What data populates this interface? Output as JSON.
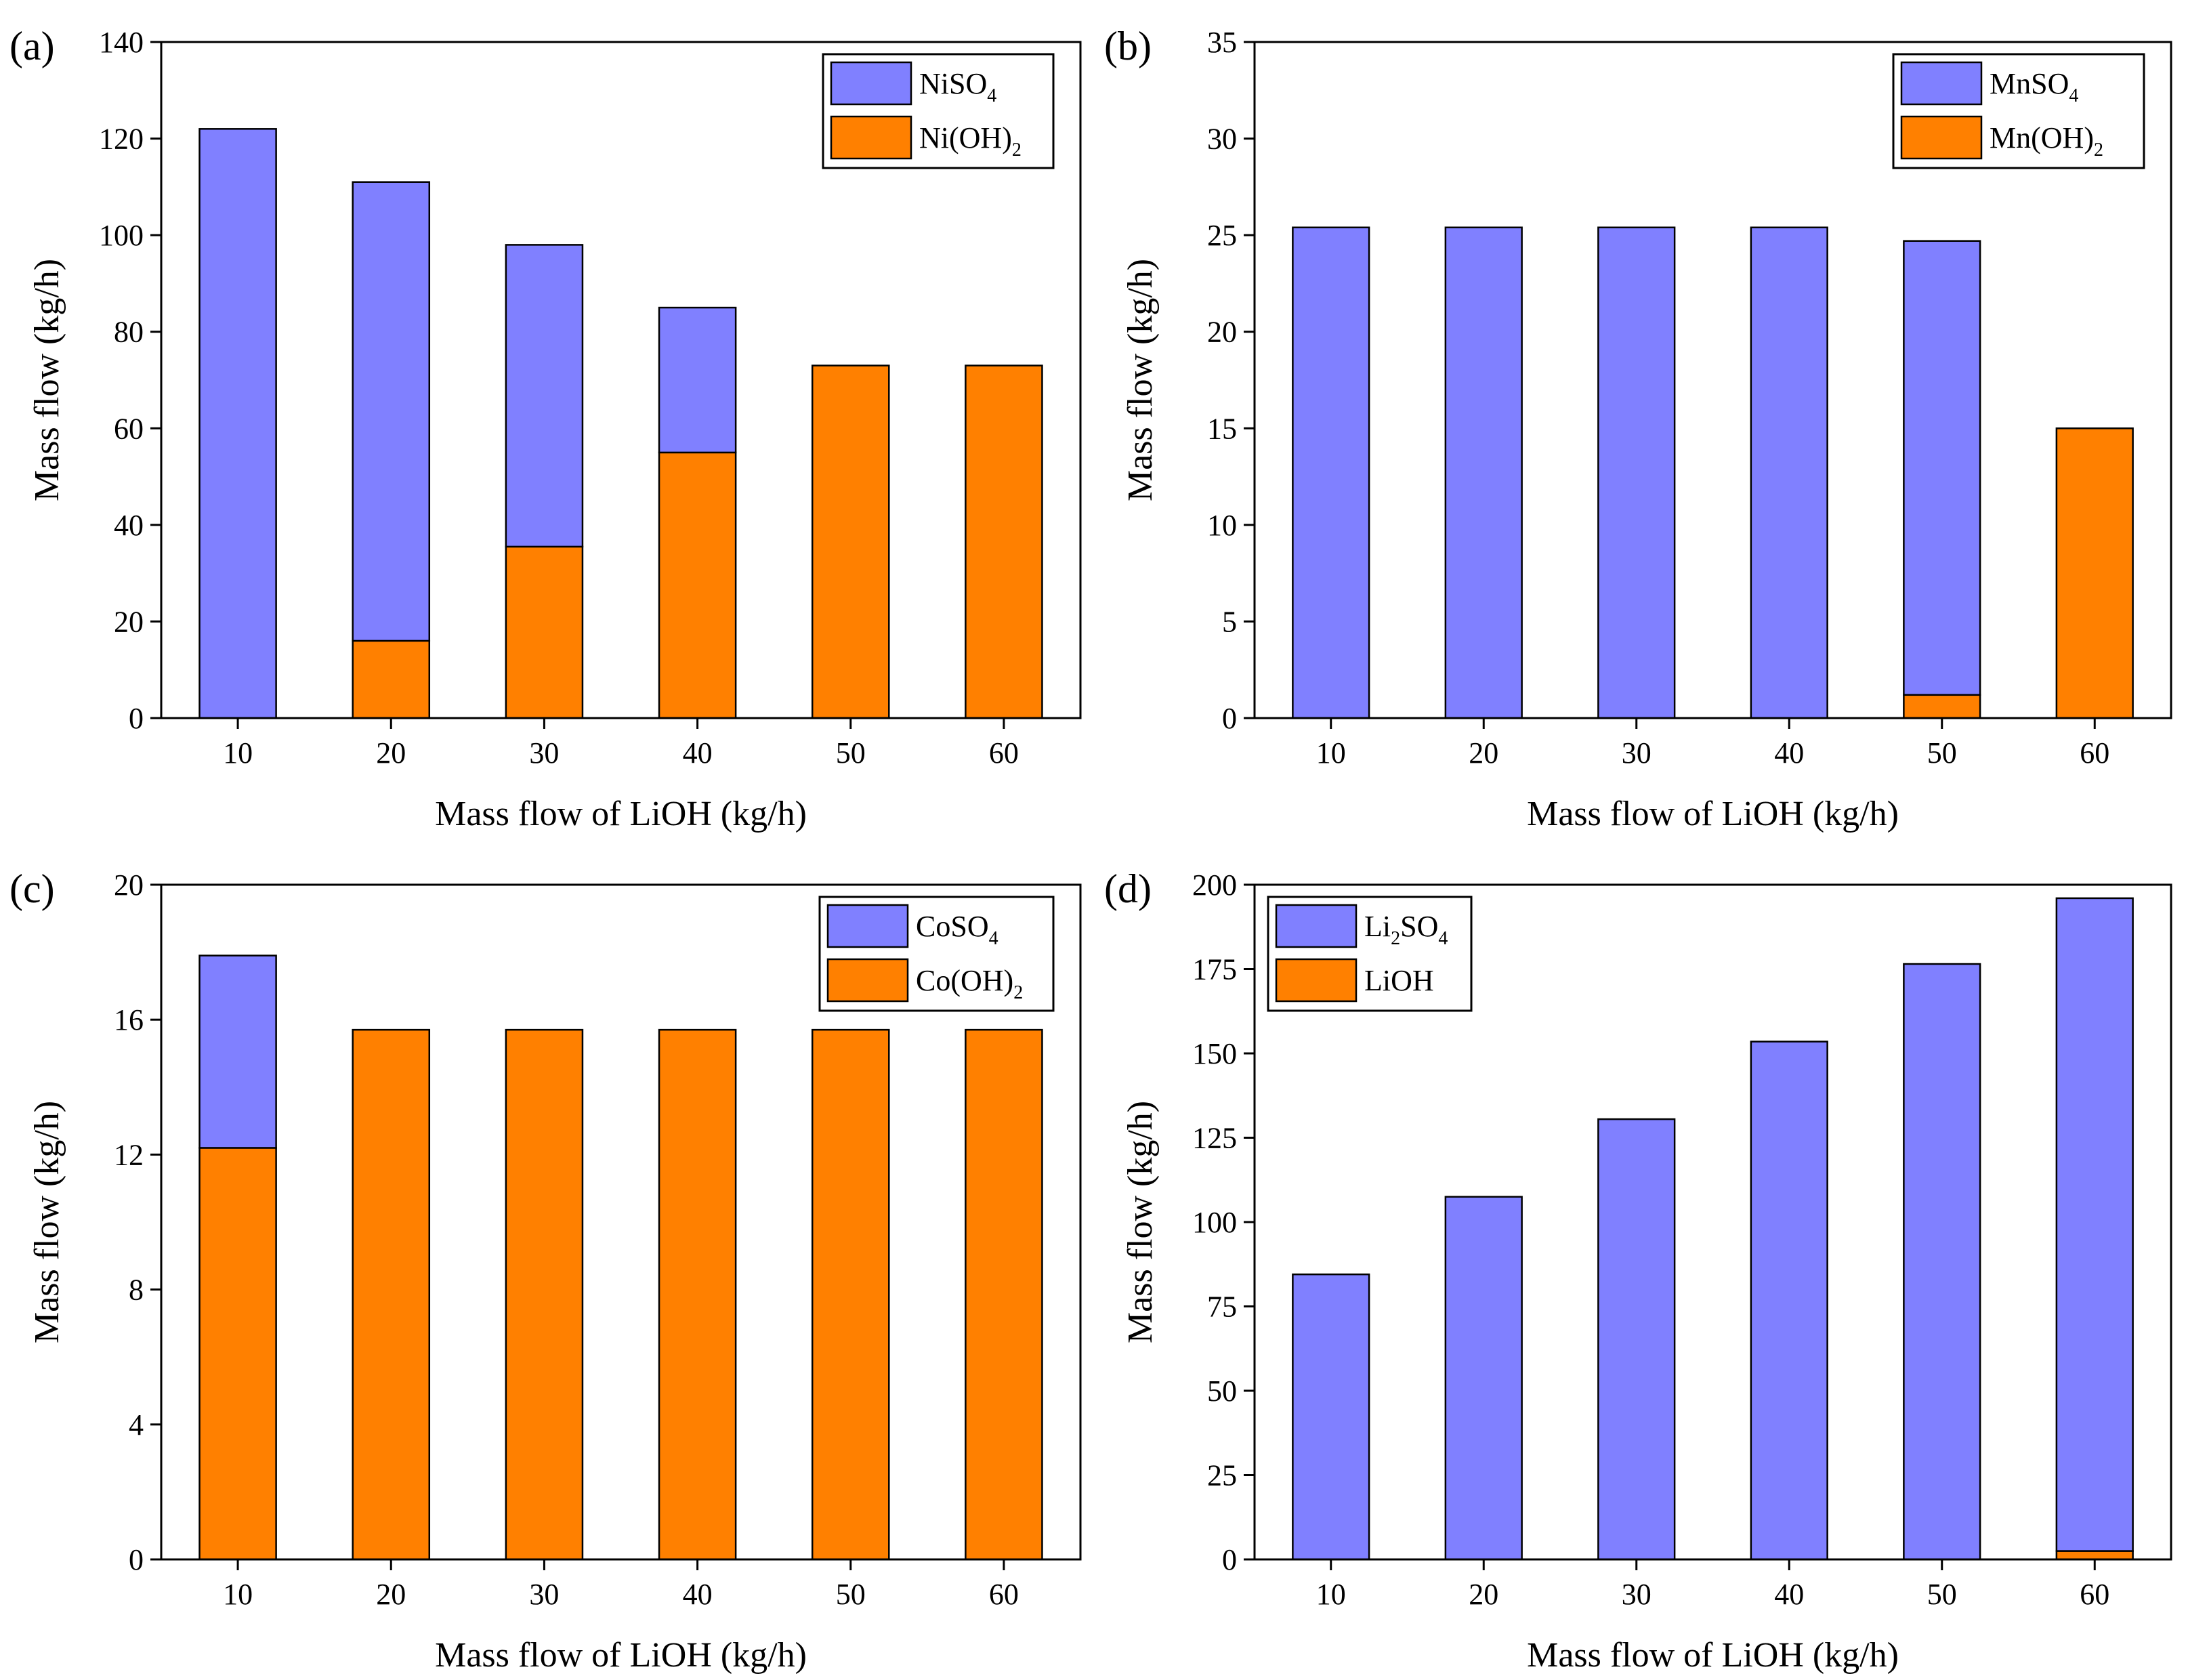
{
  "colors": {
    "sulfate": "#8080FF",
    "hydroxide": "#FF8000"
  },
  "chart_data": [
    {
      "type": "bar",
      "stacked": true,
      "panel_label": "(a)",
      "title": "",
      "xlabel": "Mass flow of LiOH (kg/h)",
      "ylabel": "Mass flow (kg/h)",
      "categories": [
        "10",
        "20",
        "30",
        "40",
        "50",
        "60"
      ],
      "ylim": [
        0,
        140
      ],
      "yticks": [
        "0",
        "20",
        "40",
        "60",
        "80",
        "100",
        "120",
        "140"
      ],
      "legend_position": "top-right",
      "series": [
        {
          "name": "Ni(OH)",
          "subscript": "2",
          "color": "#FF8000",
          "values": [
            0,
            16,
            35.5,
            55,
            73,
            73
          ]
        },
        {
          "name": "NiSO",
          "subscript": "4",
          "color": "#8080FF",
          "values": [
            122,
            95,
            62.5,
            30,
            0,
            0
          ]
        }
      ],
      "legend": [
        {
          "base": "NiSO",
          "sub": "4",
          "tail": "",
          "color": "#8080FF"
        },
        {
          "base": "Ni(OH)",
          "sub": "2",
          "tail": "",
          "color": "#FF8000"
        }
      ]
    },
    {
      "type": "bar",
      "stacked": true,
      "panel_label": "(b)",
      "title": "",
      "xlabel": "Mass flow of LiOH (kg/h)",
      "ylabel": "Mass flow (kg/h)",
      "categories": [
        "10",
        "20",
        "30",
        "40",
        "50",
        "60"
      ],
      "ylim": [
        0,
        35
      ],
      "yticks": [
        "0",
        "5",
        "10",
        "15",
        "20",
        "25",
        "30",
        "35"
      ],
      "legend_position": "top-right",
      "series": [
        {
          "name": "Mn(OH)",
          "subscript": "2",
          "color": "#FF8000",
          "values": [
            0,
            0,
            0,
            0,
            1.2,
            15
          ]
        },
        {
          "name": "MnSO",
          "subscript": "4",
          "color": "#8080FF",
          "values": [
            25.4,
            25.4,
            25.4,
            25.4,
            23.5,
            0
          ]
        }
      ],
      "legend": [
        {
          "base": "MnSO",
          "sub": "4",
          "tail": "",
          "color": "#8080FF"
        },
        {
          "base": "Mn(OH)",
          "sub": "2",
          "tail": "",
          "color": "#FF8000"
        }
      ]
    },
    {
      "type": "bar",
      "stacked": true,
      "panel_label": "(c)",
      "title": "",
      "xlabel": "Mass flow of LiOH (kg/h)",
      "ylabel": "Mass flow (kg/h)",
      "categories": [
        "10",
        "20",
        "30",
        "40",
        "50",
        "60"
      ],
      "ylim": [
        0,
        20
      ],
      "yticks": [
        "0",
        "4",
        "8",
        "12",
        "16",
        "20"
      ],
      "legend_position": "top-right",
      "series": [
        {
          "name": "Co(OH)",
          "subscript": "2",
          "color": "#FF8000",
          "values": [
            12.2,
            15.7,
            15.7,
            15.7,
            15.7,
            15.7
          ]
        },
        {
          "name": "CoSO",
          "subscript": "4",
          "color": "#8080FF",
          "values": [
            5.7,
            0,
            0,
            0,
            0,
            0
          ]
        }
      ],
      "legend": [
        {
          "base": "CoSO",
          "sub": "4",
          "tail": "",
          "color": "#8080FF"
        },
        {
          "base": "Co(OH)",
          "sub": "2",
          "tail": "",
          "color": "#FF8000"
        }
      ]
    },
    {
      "type": "bar",
      "stacked": true,
      "panel_label": "(d)",
      "title": "",
      "xlabel": "Mass flow of LiOH (kg/h)",
      "ylabel": "Mass flow (kg/h)",
      "categories": [
        "10",
        "20",
        "30",
        "40",
        "50",
        "60"
      ],
      "ylim": [
        0,
        200
      ],
      "yticks": [
        "0",
        "25",
        "50",
        "75",
        "100",
        "125",
        "150",
        "175",
        "200"
      ],
      "legend_position": "top-left",
      "series": [
        {
          "name": "LiOH",
          "subscript": "",
          "color": "#FF8000",
          "values": [
            0,
            0,
            0,
            0,
            0,
            2.5
          ]
        },
        {
          "name": "Li2SO4",
          "subscript": "",
          "color": "#8080FF",
          "values": [
            84.5,
            107.5,
            130.5,
            153.5,
            176.5,
            193.5
          ]
        }
      ],
      "legend": [
        {
          "base": "Li",
          "sub": "2",
          "tail": "SO",
          "sub2": "4",
          "color": "#8080FF"
        },
        {
          "base": "LiOH",
          "sub": "",
          "tail": "",
          "color": "#FF8000"
        }
      ]
    }
  ]
}
